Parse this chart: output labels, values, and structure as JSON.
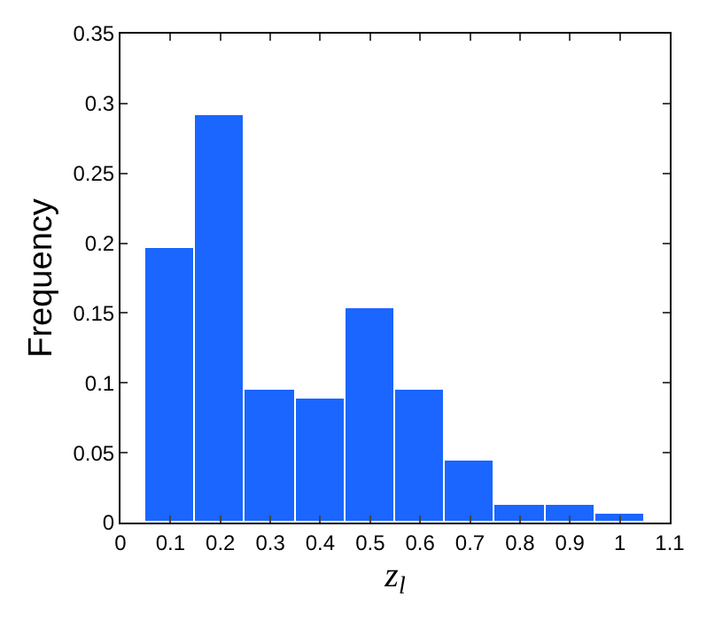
{
  "chart_data": {
    "type": "histogram",
    "xlabel": "z$_{l}$",
    "ylabel": "Frequency",
    "bins": [
      0.05,
      0.15,
      0.25,
      0.35,
      0.45,
      0.55,
      0.65,
      0.75,
      0.85,
      0.95,
      1.05
    ],
    "values": [
      0.197,
      0.292,
      0.095,
      0.089,
      0.153,
      0.095,
      0.044,
      0.013,
      0.013,
      0.006
    ],
    "color": "#1a66ff",
    "xlim": [
      0,
      1.1
    ],
    "xticks": [
      0,
      0.1,
      0.2,
      0.3,
      0.4,
      0.5,
      0.6,
      0.7,
      0.8,
      0.9,
      1,
      1.1
    ],
    "ylim": [
      0,
      0.35
    ],
    "yticks": [
      0,
      0.05,
      0.1,
      0.15,
      0.2,
      0.25,
      0.3,
      0.35
    ]
  }
}
